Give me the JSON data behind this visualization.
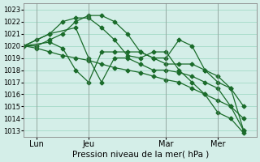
{
  "title": "",
  "xlabel": "Pression niveau de la mer( hPa )",
  "ylabel": "",
  "background_color": "#d4eee8",
  "grid_color": "#aaddcc",
  "line_color": "#1a6b2a",
  "ylim": [
    1012.5,
    1023.5
  ],
  "xlim": [
    0,
    18
  ],
  "yticks": [
    1013,
    1014,
    1015,
    1016,
    1017,
    1018,
    1019,
    1020,
    1021,
    1022,
    1023
  ],
  "xtick_positions": [
    1,
    5,
    11,
    15
  ],
  "xtick_labels": [
    "Lun",
    "Jeu",
    "Mar",
    "Mer"
  ],
  "series": [
    {
      "x": [
        0,
        1,
        2,
        3,
        4,
        5,
        6,
        7,
        8,
        9,
        10,
        11,
        12,
        13,
        14,
        15,
        16,
        17
      ],
      "y": [
        1020,
        1020,
        1020.5,
        1021,
        1022,
        1022.5,
        1022.5,
        1022,
        1021,
        1019.5,
        1019,
        1019,
        1020.5,
        1020,
        1018,
        1017,
        1016.5,
        1015
      ]
    },
    {
      "x": [
        0,
        1,
        2,
        3,
        4,
        5,
        6,
        7,
        8,
        9,
        10,
        11,
        12,
        13,
        14,
        15,
        16,
        17
      ],
      "y": [
        1020,
        1020.5,
        1021,
        1022,
        1022.3,
        1022.3,
        1021.5,
        1020.5,
        1019.2,
        1019,
        1019.5,
        1019.5,
        1018,
        1017,
        1016,
        1014.5,
        1014,
        1012.8
      ]
    },
    {
      "x": [
        0,
        2,
        4,
        5,
        6,
        7,
        8,
        9,
        10,
        11,
        12,
        13,
        14,
        15,
        16,
        17
      ],
      "y": [
        1020,
        1021,
        1021.5,
        1019,
        1017,
        1019,
        1019,
        1018.5,
        1018,
        1018,
        1017.8,
        1017.5,
        1017,
        1016.5,
        1015,
        1013
      ]
    },
    {
      "x": [
        0,
        1,
        2,
        3,
        4,
        5,
        6,
        7,
        8,
        9,
        10,
        11,
        12,
        13,
        14,
        15,
        16,
        17
      ],
      "y": [
        1020,
        1019.8,
        1019.5,
        1019.2,
        1019,
        1018.8,
        1018.5,
        1018.2,
        1018,
        1017.8,
        1017.5,
        1017.2,
        1017,
        1016.5,
        1016,
        1015.5,
        1015,
        1014
      ]
    },
    {
      "x": [
        0,
        2,
        3,
        4,
        5,
        6,
        7,
        8,
        9,
        10,
        11,
        12,
        13,
        14,
        15,
        16,
        17
      ],
      "y": [
        1020,
        1020.3,
        1019.8,
        1018,
        1017,
        1019.5,
        1019.5,
        1019.5,
        1019.5,
        1019,
        1018.5,
        1018.5,
        1018.5,
        1018,
        1017.5,
        1016.5,
        1013
      ]
    }
  ]
}
